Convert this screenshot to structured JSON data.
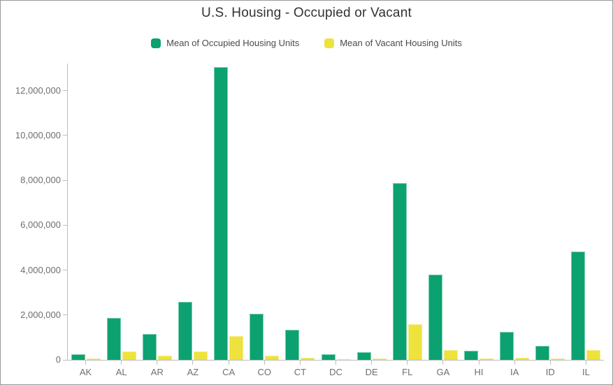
{
  "chart_data": {
    "type": "bar",
    "title": "U.S. Housing - Occupied or Vacant",
    "categories": [
      "AK",
      "AL",
      "AR",
      "AZ",
      "CA",
      "CO",
      "CT",
      "DC",
      "DE",
      "FL",
      "GA",
      "HI",
      "IA",
      "ID",
      "IL"
    ],
    "series": [
      {
        "name": "Mean of Occupied Housing Units",
        "color": "#0ca170",
        "values": [
          250000,
          1870000,
          1150000,
          2570000,
          13050000,
          2070000,
          1350000,
          260000,
          345000,
          7870000,
          3790000,
          420000,
          1230000,
          610000,
          4820000
        ]
      },
      {
        "name": "Mean of Vacant Housing Units",
        "color": "#eee23c",
        "values": [
          60000,
          360000,
          190000,
          360000,
          1060000,
          200000,
          105000,
          30000,
          60000,
          1590000,
          450000,
          55000,
          105000,
          55000,
          450000
        ]
      }
    ],
    "xlabel": "",
    "ylabel": "",
    "y_ticks": [
      "0",
      "2,000,000",
      "4,000,000",
      "6,000,000",
      "8,000,000",
      "10,000,000",
      "12,000,000"
    ],
    "y_tick_values": [
      0,
      2000000,
      4000000,
      6000000,
      8000000,
      10000000,
      12000000
    ],
    "ylim": [
      0,
      13200000
    ],
    "grid": false,
    "legend_position": "top",
    "axis_color": "#bdbdbd",
    "label_color": "#6e6e6e",
    "title_color": "#323232"
  }
}
